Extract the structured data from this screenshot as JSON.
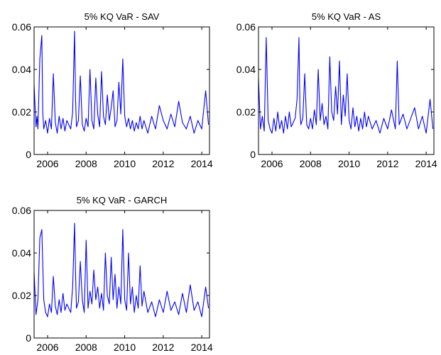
{
  "chart_data": [
    {
      "type": "line",
      "title": "5% KQ VaR - SAV",
      "xlim": [
        2005.3,
        2014.4
      ],
      "ylim": [
        0,
        0.06
      ],
      "xticks": [
        2006,
        2008,
        2010,
        2012,
        2014
      ],
      "xtick_labels": [
        "2006",
        "2008",
        "2010",
        "2012",
        "2014"
      ],
      "yticks": [
        0,
        0.02,
        0.04,
        0.06
      ],
      "ytick_labels": [
        "0",
        "0.02",
        "0.04",
        "0.06"
      ],
      "grid": false,
      "color": "#0000ff",
      "series": [
        {
          "x": [
            2005.3,
            2005.4,
            2005.45,
            2005.5,
            2005.6,
            2005.7,
            2005.75,
            2005.8,
            2005.9,
            2006.0,
            2006.1,
            2006.2,
            2006.3,
            2006.4,
            2006.5,
            2006.6,
            2006.7,
            2006.8,
            2006.9,
            2007.0,
            2007.2,
            2007.3,
            2007.4,
            2007.45,
            2007.5,
            2007.6,
            2007.7,
            2007.8,
            2007.9,
            2008.0,
            2008.1,
            2008.2,
            2008.3,
            2008.4,
            2008.5,
            2008.6,
            2008.7,
            2008.8,
            2008.9,
            2009.0,
            2009.1,
            2009.2,
            2009.3,
            2009.4,
            2009.5,
            2009.6,
            2009.7,
            2009.8,
            2009.9,
            2010.0,
            2010.1,
            2010.2,
            2010.3,
            2010.4,
            2010.5,
            2010.6,
            2010.7,
            2010.8,
            2010.9,
            2011.0,
            2011.2,
            2011.4,
            2011.6,
            2011.8,
            2012.0,
            2012.2,
            2012.4,
            2012.6,
            2012.8,
            2013.0,
            2013.2,
            2013.4,
            2013.6,
            2013.8,
            2014.0,
            2014.2,
            2014.35
          ],
          "y": [
            0.033,
            0.013,
            0.018,
            0.012,
            0.045,
            0.056,
            0.02,
            0.012,
            0.016,
            0.01,
            0.017,
            0.012,
            0.038,
            0.015,
            0.01,
            0.018,
            0.012,
            0.017,
            0.011,
            0.016,
            0.012,
            0.02,
            0.058,
            0.026,
            0.013,
            0.016,
            0.037,
            0.014,
            0.011,
            0.017,
            0.013,
            0.04,
            0.016,
            0.012,
            0.036,
            0.019,
            0.013,
            0.039,
            0.018,
            0.014,
            0.028,
            0.016,
            0.022,
            0.03,
            0.013,
            0.016,
            0.034,
            0.019,
            0.045,
            0.018,
            0.013,
            0.017,
            0.012,
            0.016,
            0.011,
            0.015,
            0.012,
            0.018,
            0.012,
            0.016,
            0.01,
            0.018,
            0.012,
            0.023,
            0.016,
            0.012,
            0.019,
            0.013,
            0.025,
            0.015,
            0.012,
            0.018,
            0.01,
            0.016,
            0.012,
            0.03,
            0.014
          ]
        }
      ]
    },
    {
      "type": "line",
      "title": "5% KQ VaR - AS",
      "xlim": [
        2005.3,
        2014.4
      ],
      "ylim": [
        0,
        0.06
      ],
      "xticks": [
        2006,
        2008,
        2010,
        2012,
        2014
      ],
      "xtick_labels": [
        "2006",
        "2008",
        "2010",
        "2012",
        "2014"
      ],
      "yticks": [
        0,
        0.02,
        0.04,
        0.06
      ],
      "ytick_labels": [
        "0",
        "0.02",
        "0.04",
        "0.06"
      ],
      "grid": false,
      "color": "#0000ff",
      "series": [
        {
          "x": [
            2005.3,
            2005.4,
            2005.5,
            2005.6,
            2005.7,
            2005.8,
            2005.9,
            2006.0,
            2006.1,
            2006.2,
            2006.3,
            2006.4,
            2006.5,
            2006.6,
            2006.7,
            2006.8,
            2006.9,
            2007.0,
            2007.2,
            2007.3,
            2007.4,
            2007.45,
            2007.5,
            2007.6,
            2007.7,
            2007.8,
            2007.9,
            2008.0,
            2008.1,
            2008.2,
            2008.3,
            2008.4,
            2008.5,
            2008.6,
            2008.7,
            2008.8,
            2008.9,
            2009.0,
            2009.1,
            2009.2,
            2009.3,
            2009.4,
            2009.5,
            2009.6,
            2009.7,
            2009.8,
            2009.9,
            2010.0,
            2010.1,
            2010.2,
            2010.3,
            2010.4,
            2010.5,
            2010.6,
            2010.7,
            2010.8,
            2010.9,
            2011.0,
            2011.2,
            2011.4,
            2011.6,
            2011.8,
            2012.0,
            2012.2,
            2012.4,
            2012.5,
            2012.6,
            2012.8,
            2013.0,
            2013.2,
            2013.4,
            2013.6,
            2013.8,
            2014.0,
            2014.2,
            2014.35
          ],
          "y": [
            0.036,
            0.012,
            0.018,
            0.011,
            0.055,
            0.016,
            0.012,
            0.01,
            0.017,
            0.011,
            0.02,
            0.012,
            0.016,
            0.01,
            0.018,
            0.012,
            0.02,
            0.013,
            0.017,
            0.026,
            0.055,
            0.02,
            0.014,
            0.017,
            0.038,
            0.014,
            0.012,
            0.017,
            0.012,
            0.021,
            0.014,
            0.04,
            0.016,
            0.024,
            0.014,
            0.018,
            0.012,
            0.046,
            0.02,
            0.016,
            0.032,
            0.019,
            0.044,
            0.014,
            0.028,
            0.018,
            0.038,
            0.016,
            0.012,
            0.022,
            0.013,
            0.018,
            0.011,
            0.017,
            0.012,
            0.02,
            0.013,
            0.018,
            0.012,
            0.016,
            0.01,
            0.017,
            0.012,
            0.021,
            0.012,
            0.044,
            0.014,
            0.019,
            0.012,
            0.017,
            0.022,
            0.012,
            0.018,
            0.01,
            0.026,
            0.012
          ]
        }
      ]
    },
    {
      "type": "line",
      "title": "5% KQ VaR - GARCH",
      "xlim": [
        2005.3,
        2014.4
      ],
      "ylim": [
        0,
        0.06
      ],
      "xticks": [
        2006,
        2008,
        2010,
        2012,
        2014
      ],
      "xtick_labels": [
        "2006",
        "2008",
        "2010",
        "2012",
        "2014"
      ],
      "yticks": [
        0,
        0.02,
        0.04,
        0.06
      ],
      "ytick_labels": [
        "0",
        "0.02",
        "0.04",
        "0.06"
      ],
      "grid": false,
      "color": "#0000ff",
      "series": [
        {
          "x": [
            2005.3,
            2005.4,
            2005.5,
            2005.6,
            2005.7,
            2005.8,
            2005.9,
            2006.0,
            2006.1,
            2006.2,
            2006.3,
            2006.4,
            2006.5,
            2006.6,
            2006.7,
            2006.8,
            2006.9,
            2007.0,
            2007.2,
            2007.3,
            2007.4,
            2007.45,
            2007.5,
            2007.6,
            2007.7,
            2007.8,
            2007.9,
            2008.0,
            2008.1,
            2008.2,
            2008.3,
            2008.4,
            2008.5,
            2008.6,
            2008.7,
            2008.8,
            2008.9,
            2009.0,
            2009.1,
            2009.2,
            2009.3,
            2009.4,
            2009.5,
            2009.6,
            2009.7,
            2009.8,
            2009.9,
            2010.0,
            2010.1,
            2010.2,
            2010.3,
            2010.4,
            2010.5,
            2010.6,
            2010.7,
            2010.8,
            2010.9,
            2011.0,
            2011.2,
            2011.4,
            2011.6,
            2011.8,
            2012.0,
            2012.2,
            2012.4,
            2012.6,
            2012.8,
            2013.0,
            2013.2,
            2013.4,
            2013.6,
            2013.8,
            2014.0,
            2014.2,
            2014.35
          ],
          "y": [
            0.031,
            0.011,
            0.018,
            0.047,
            0.051,
            0.018,
            0.012,
            0.01,
            0.016,
            0.012,
            0.029,
            0.015,
            0.011,
            0.018,
            0.012,
            0.021,
            0.013,
            0.016,
            0.012,
            0.024,
            0.054,
            0.03,
            0.014,
            0.017,
            0.036,
            0.018,
            0.012,
            0.046,
            0.014,
            0.022,
            0.016,
            0.032,
            0.018,
            0.024,
            0.014,
            0.021,
            0.013,
            0.04,
            0.02,
            0.016,
            0.038,
            0.018,
            0.03,
            0.014,
            0.024,
            0.016,
            0.051,
            0.018,
            0.013,
            0.04,
            0.016,
            0.024,
            0.012,
            0.02,
            0.014,
            0.034,
            0.015,
            0.022,
            0.012,
            0.017,
            0.01,
            0.018,
            0.012,
            0.022,
            0.013,
            0.017,
            0.011,
            0.021,
            0.012,
            0.025,
            0.013,
            0.017,
            0.01,
            0.024,
            0.014
          ]
        }
      ]
    }
  ]
}
